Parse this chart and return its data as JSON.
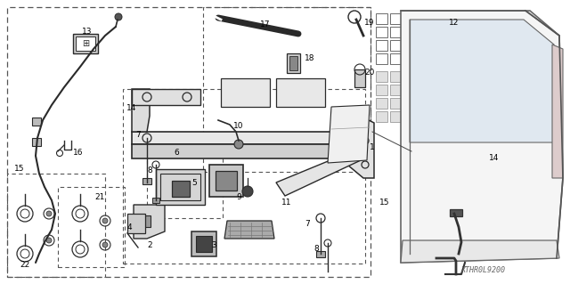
{
  "bg_color": "#ffffff",
  "line_color": "#2a2a2a",
  "fig_width": 6.4,
  "fig_height": 3.19,
  "dpi": 100,
  "watermark": "XTHR0L9200"
}
